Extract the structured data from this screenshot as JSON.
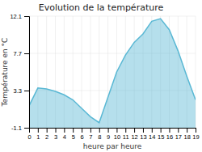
{
  "chart_data": {
    "type": "area",
    "title": "Evolution de la température",
    "xlabel": "heure par heure",
    "ylabel": "Température en °C",
    "x": [
      0,
      1,
      2,
      3,
      4,
      5,
      6,
      7,
      8,
      9,
      10,
      11,
      12,
      13,
      14,
      15,
      16,
      17,
      18,
      19
    ],
    "values": [
      1.5,
      3.6,
      3.5,
      3.2,
      2.8,
      2.2,
      1.2,
      0.2,
      -0.5,
      2.5,
      5.5,
      7.5,
      9.0,
      10.0,
      11.5,
      11.8,
      10.5,
      8.0,
      5.0,
      2.2
    ],
    "color": "#5ab8d4",
    "xlim": [
      0,
      19
    ],
    "xticks": [
      0,
      1,
      2,
      3,
      4,
      5,
      6,
      7,
      8,
      9,
      10,
      11,
      12,
      13,
      14,
      15,
      16,
      17,
      18,
      19
    ],
    "ylim": [
      -1.1,
      12.1
    ],
    "yticks": [
      -1.1,
      3.3,
      7.7,
      12.1
    ],
    "grid": true
  }
}
